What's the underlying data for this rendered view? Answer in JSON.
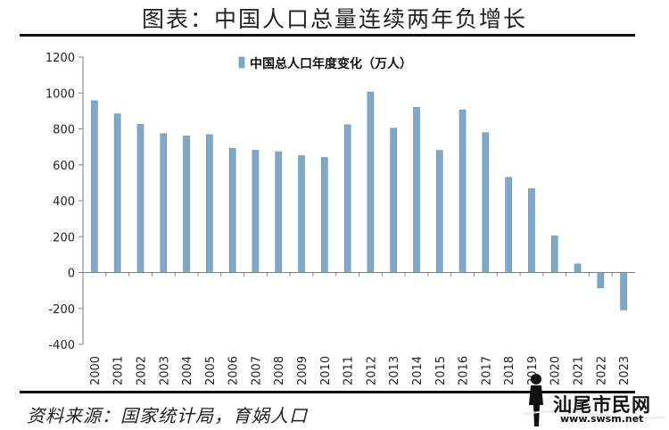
{
  "page": {
    "title": "图表：中国人口总量连续两年负增长",
    "source": "资料来源：国家统计局，育娲人口"
  },
  "watermark": {
    "text": "汕尾市民网",
    "url": "www.swsm.net"
  },
  "chart_data": {
    "type": "bar",
    "legend": "中国总人口年度变化（万人）",
    "legend_position": "top-center",
    "bar_color": "#7ea7c8",
    "grid": false,
    "ylim": [
      -400,
      1200
    ],
    "yticks": [
      -400,
      -200,
      0,
      200,
      400,
      600,
      800,
      1000,
      1200
    ],
    "categories": [
      "2000",
      "2001",
      "2002",
      "2003",
      "2004",
      "2005",
      "2006",
      "2007",
      "2008",
      "2009",
      "2010",
      "2011",
      "2012",
      "2013",
      "2014",
      "2015",
      "2016",
      "2017",
      "2018",
      "2019",
      "2020",
      "2021",
      "2022",
      "2023"
    ],
    "series": [
      {
        "name": "中国总人口年度变化（万人）",
        "values": [
          957,
          884,
          826,
          774,
          761,
          768,
          692,
          681,
          673,
          651,
          641,
          823,
          1006,
          804,
          920,
          680,
          906,
          779,
          530,
          467,
          204,
          48,
          -85,
          -208
        ]
      }
    ]
  }
}
